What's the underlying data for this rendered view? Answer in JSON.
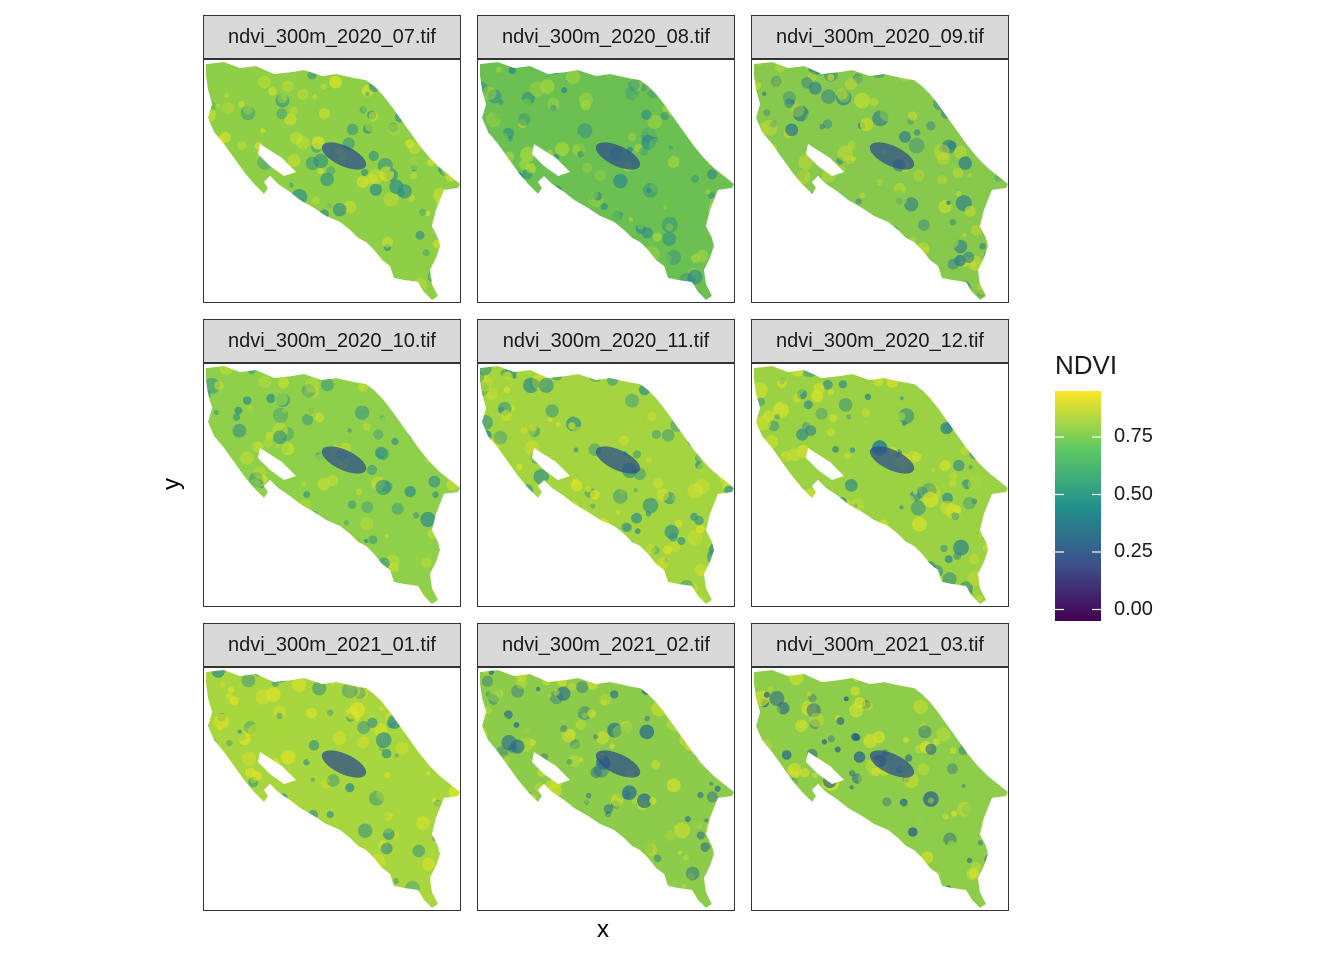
{
  "axes": {
    "xlabel": "x",
    "ylabel": "y"
  },
  "legend": {
    "title": "NDVI",
    "ticks": [
      {
        "value": 0.75,
        "label": "0.75"
      },
      {
        "value": 0.5,
        "label": "0.50"
      },
      {
        "value": 0.25,
        "label": "0.25"
      },
      {
        "value": 0.0,
        "label": "0.00"
      }
    ],
    "range": [
      -0.05,
      0.95
    ],
    "colormap": [
      "#440154",
      "#3b528b",
      "#21918c",
      "#5ec962",
      "#fde725"
    ]
  },
  "panels": [
    {
      "title": "ndvi_300m_2020_07.tif",
      "base_color": "#8fcf47",
      "dark_color": "#2e8f86",
      "light_color": "#d4e22a"
    },
    {
      "title": "ndvi_300m_2020_08.tif",
      "base_color": "#6cc052",
      "dark_color": "#2b8a8a",
      "light_color": "#a8d83a"
    },
    {
      "title": "ndvi_300m_2020_09.tif",
      "base_color": "#86c94c",
      "dark_color": "#2a7a8e",
      "light_color": "#c9dd2e"
    },
    {
      "title": "ndvi_300m_2020_10.tif",
      "base_color": "#8fd04a",
      "dark_color": "#2e8f86",
      "light_color": "#c7df2f"
    },
    {
      "title": "ndvi_300m_2020_11.tif",
      "base_color": "#a4d540",
      "dark_color": "#309085",
      "light_color": "#dbe326"
    },
    {
      "title": "ndvi_300m_2020_12.tif",
      "base_color": "#9bd244",
      "dark_color": "#2c858a",
      "light_color": "#d8e228"
    },
    {
      "title": "ndvi_300m_2021_01.tif",
      "base_color": "#a8d63e",
      "dark_color": "#2f8c87",
      "light_color": "#e2e424"
    },
    {
      "title": "ndvi_300m_2021_02.tif",
      "base_color": "#8ccc4a",
      "dark_color": "#256c8e",
      "light_color": "#cfe02c"
    },
    {
      "title": "ndvi_300m_2021_03.tif",
      "base_color": "#8ecd4a",
      "dark_color": "#245f8d",
      "light_color": "#d2e12b"
    }
  ]
}
